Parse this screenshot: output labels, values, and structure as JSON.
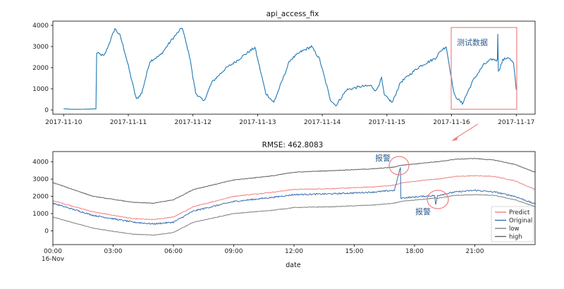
{
  "chart_data": [
    {
      "type": "line",
      "title": "api_access_fix",
      "xlabel": "",
      "ylabel": "",
      "x_tick_labels": [
        "2017-11-10",
        "2017-11-11",
        "2017-11-12",
        "2017-11-13",
        "2017-11-14",
        "2017-11-15",
        "2017-11-16",
        "2017-11-17"
      ],
      "y_ticks": [
        0,
        1000,
        2000,
        3000,
        4000
      ],
      "xlim": [
        "2017-11-09 20:00",
        "2017-11-17 07:00"
      ],
      "ylim": [
        -200,
        4200
      ],
      "color": "#1f77b4",
      "series": [
        {
          "x": [
            "2017-11-10 00:00",
            "2017-11-10 03:00",
            "2017-11-10 06:00",
            "2017-11-10 09:00",
            "2017-11-10 12:00",
            "2017-11-10 12:15",
            "2017-11-10 15:00",
            "2017-11-10 16:00",
            "2017-11-10 18:00",
            "2017-11-10 19:00",
            "2017-11-10 21:00",
            "2017-11-10 23:00",
            "2017-11-11 03:00",
            "2017-11-11 05:00",
            "2017-11-11 08:00",
            "2017-11-11 12:00",
            "2017-11-11 16:00",
            "2017-11-11 20:00",
            "2017-11-11 23:00",
            "2017-11-12 00:00",
            "2017-11-12 00:30",
            "2017-11-12 01:00",
            "2017-11-12 04:00",
            "2017-11-12 07:00",
            "2017-11-12 12:00",
            "2017-11-12 16:00",
            "2017-11-12 19:00",
            "2017-11-12 23:00",
            "2017-11-13 03:00",
            "2017-11-13 06:00",
            "2017-11-13 12:00",
            "2017-11-13 16:00",
            "2017-11-13 20:00",
            "2017-11-13 23:00",
            "2017-11-14 03:00",
            "2017-11-14 05:00",
            "2017-11-14 09:00",
            "2017-11-14 14:00",
            "2017-11-14 18:00",
            "2017-11-14 20:00",
            "2017-11-14 22:00",
            "2017-11-14 23:00",
            "2017-11-15 02:00",
            "2017-11-15 05:00",
            "2017-11-15 12:00",
            "2017-11-15 18:00",
            "2017-11-15 20:00",
            "2017-11-15 22:00",
            "2017-11-16 01:00",
            "2017-11-16 04:00",
            "2017-11-16 08:00",
            "2017-11-16 12:00",
            "2017-11-16 15:00",
            "2017-11-16 17:00",
            "2017-11-16 17:10",
            "2017-11-16 17:20",
            "2017-11-16 19:00",
            "2017-11-16 21:00",
            "2017-11-16 23:00",
            "2017-11-17 00:00"
          ],
          "y": [
            60,
            30,
            30,
            40,
            50,
            2700,
            2550,
            2850,
            3500,
            3850,
            3500,
            2600,
            500,
            800,
            2300,
            2600,
            3300,
            3900,
            2400,
            1500,
            1200,
            800,
            400,
            1300,
            1950,
            2300,
            2600,
            2950,
            800,
            350,
            2350,
            2750,
            3000,
            2400,
            500,
            200,
            950,
            1100,
            1150,
            900,
            1500,
            700,
            350,
            1300,
            2050,
            2450,
            2800,
            3000,
            700,
            300,
            1400,
            2150,
            2400,
            2350,
            3650,
            1800,
            2350,
            2500,
            2200,
            950
          ]
        }
      ],
      "annotations": [
        {
          "text": "测试数据"
        }
      ]
    },
    {
      "type": "line",
      "title": "RMSE: 462.8083",
      "xlabel": "date",
      "ylabel": "",
      "x_tick_labels": [
        "00:00",
        "03:00",
        "06:00",
        "09:00",
        "12:00",
        "15:00",
        "18:00",
        "21:00"
      ],
      "x_sub_label": "16-Nov",
      "y_ticks": [
        0,
        1000,
        2000,
        3000,
        4000
      ],
      "xlim": [
        "2017-11-16 00:00",
        "2017-11-17 00:00"
      ],
      "ylim": [
        -800,
        4600
      ],
      "legend_position": "lower-right",
      "hours": [
        0,
        2,
        4,
        5,
        6,
        7,
        9,
        11,
        12,
        14,
        16,
        17,
        17.3,
        17.32,
        19,
        19.05,
        19.15,
        20,
        21,
        22,
        23,
        24
      ],
      "series": [
        {
          "name": "Predict",
          "color": "#f08080",
          "values": [
            1750,
            1100,
            700,
            650,
            800,
            1400,
            2000,
            2250,
            2400,
            2450,
            2550,
            2650,
            2750,
            2780,
            3000,
            3000,
            3000,
            3150,
            3200,
            3150,
            2900,
            2400
          ]
        },
        {
          "name": "Original",
          "color": "#3a6fb0",
          "values": [
            1600,
            900,
            500,
            400,
            500,
            1150,
            1700,
            1950,
            2100,
            2150,
            2250,
            2350,
            3700,
            1900,
            2050,
            1500,
            2050,
            2250,
            2350,
            2250,
            2000,
            1550
          ]
        },
        {
          "name": "low",
          "color": "#808080",
          "values": [
            800,
            150,
            -200,
            -250,
            -100,
            500,
            1000,
            1200,
            1350,
            1400,
            1500,
            1600,
            1700,
            1700,
            1900,
            1900,
            1900,
            2050,
            2100,
            2050,
            1800,
            1400
          ]
        },
        {
          "name": "high",
          "color": "#606060",
          "values": [
            2800,
            2000,
            1650,
            1600,
            1800,
            2400,
            2950,
            3200,
            3400,
            3500,
            3600,
            3700,
            3800,
            3800,
            4000,
            4000,
            4000,
            4150,
            4200,
            4100,
            3850,
            3400
          ]
        }
      ],
      "annotations": [
        {
          "text": "报警"
        },
        {
          "text": "报警"
        }
      ]
    }
  ]
}
